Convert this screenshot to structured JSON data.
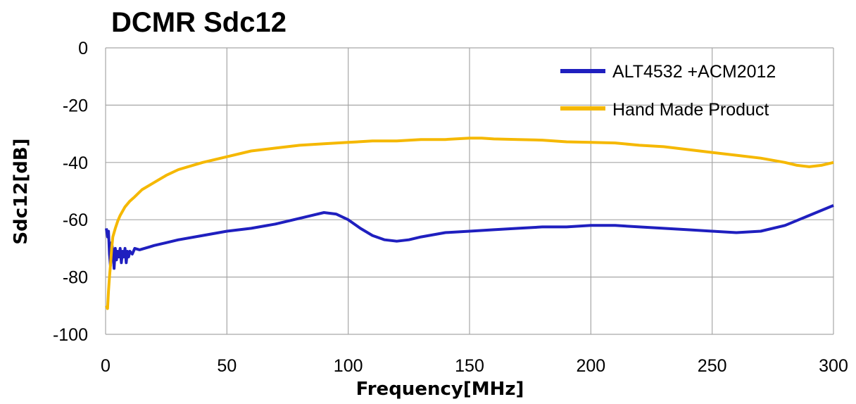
{
  "chart_data": {
    "type": "line",
    "title": "DCMR Sdc12",
    "xlabel": "Frequency[MHz]",
    "ylabel": "Sdc12[dB]",
    "xlim": [
      0,
      300
    ],
    "ylim": [
      -100,
      0
    ],
    "xticks": [
      0,
      50,
      100,
      150,
      200,
      250,
      300
    ],
    "yticks": [
      0,
      -20,
      -40,
      -60,
      -80,
      -100
    ],
    "grid": true,
    "legend_position": "top-right",
    "series": [
      {
        "name": "ALT4532 +ACM2012",
        "color": "#1f1fbf",
        "x": [
          0.3,
          0.8,
          1.2,
          1.6,
          2.0,
          2.5,
          3.0,
          3.5,
          4,
          4.5,
          5,
          5.5,
          6,
          6.5,
          7,
          7.5,
          8,
          8.5,
          9,
          9.5,
          10,
          11,
          12,
          14,
          16,
          18,
          20,
          25,
          30,
          40,
          50,
          60,
          70,
          80,
          85,
          90,
          95,
          100,
          105,
          110,
          115,
          120,
          125,
          130,
          140,
          150,
          160,
          170,
          180,
          190,
          200,
          210,
          220,
          230,
          240,
          250,
          260,
          270,
          280,
          290,
          300
        ],
        "y": [
          -63,
          -66,
          -64,
          -72,
          -76,
          -68,
          -71,
          -77,
          -70,
          -74,
          -71,
          -73,
          -70,
          -75,
          -71,
          -73,
          -70,
          -75,
          -71,
          -73,
          -71,
          -72,
          -70,
          -70.5,
          -70,
          -69.5,
          -69,
          -68,
          -67,
          -65.5,
          -64,
          -63,
          -61.5,
          -59.5,
          -58.5,
          -57.5,
          -58,
          -60,
          -63,
          -65.5,
          -67,
          -67.5,
          -67,
          -66,
          -64.5,
          -64,
          -63.5,
          -63,
          -62.5,
          -62.5,
          -62,
          -62,
          -62.5,
          -63,
          -63.5,
          -64,
          -64.5,
          -64,
          -62,
          -58.5,
          -55
        ]
      },
      {
        "name": "Hand Made Product",
        "color": "#f5b800",
        "x": [
          0.3,
          0.8,
          1.2,
          1.6,
          2.0,
          2.5,
          3,
          4,
          5,
          6,
          8,
          10,
          12,
          15,
          20,
          25,
          30,
          40,
          50,
          60,
          70,
          80,
          90,
          100,
          110,
          120,
          130,
          140,
          150,
          155,
          160,
          170,
          180,
          190,
          200,
          210,
          220,
          230,
          240,
          250,
          260,
          270,
          280,
          285,
          290,
          295,
          300
        ],
        "y": [
          -90,
          -91,
          -85,
          -80,
          -76,
          -70,
          -66,
          -63,
          -60.5,
          -58.5,
          -55.5,
          -53.5,
          -52,
          -49.5,
          -47,
          -44.5,
          -42.5,
          -40,
          -38,
          -36,
          -35,
          -34,
          -33.5,
          -33,
          -32.5,
          -32.5,
          -32,
          -32,
          -31.5,
          -31.5,
          -31.8,
          -32,
          -32.2,
          -32.8,
          -33,
          -33.2,
          -34,
          -34.5,
          -35.5,
          -36.5,
          -37.5,
          -38.5,
          -40,
          -41,
          -41.5,
          -41,
          -40
        ]
      }
    ]
  }
}
